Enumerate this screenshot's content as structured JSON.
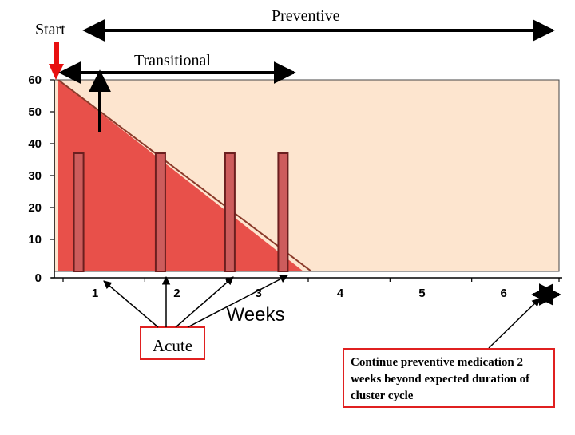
{
  "chart_data": {
    "type": "area",
    "x": [
      0,
      3
    ],
    "y": [
      60,
      0
    ],
    "xlabel": "Weeks",
    "xticks": [
      "1",
      "2",
      "3",
      "4",
      "5",
      "6"
    ],
    "yticks": [
      "0",
      "10",
      "20",
      "30",
      "40",
      "50",
      "60"
    ],
    "ylim": [
      0,
      60
    ],
    "xlim": [
      0,
      6
    ],
    "acute_bars": [
      {
        "week": 0.25,
        "value": 37
      },
      {
        "week": 1.25,
        "value": 37
      },
      {
        "week": 2.1,
        "value": 37
      },
      {
        "week": 2.75,
        "value": 37
      }
    ],
    "phases": {
      "start": "Start",
      "preventive": "Preventive",
      "transitional": "Transitional",
      "acute": "Acute"
    },
    "note": "Continue preventive medication 2 weeks beyond expected duration of cluster cycle",
    "colors": {
      "area": "#e8504a",
      "area_edge": "#8b3a2a",
      "plot_bg": "#fde5cf",
      "bar": "#cd5c5c",
      "arrow_red": "#e81010",
      "box_border": "#e02020"
    },
    "grid": false
  }
}
